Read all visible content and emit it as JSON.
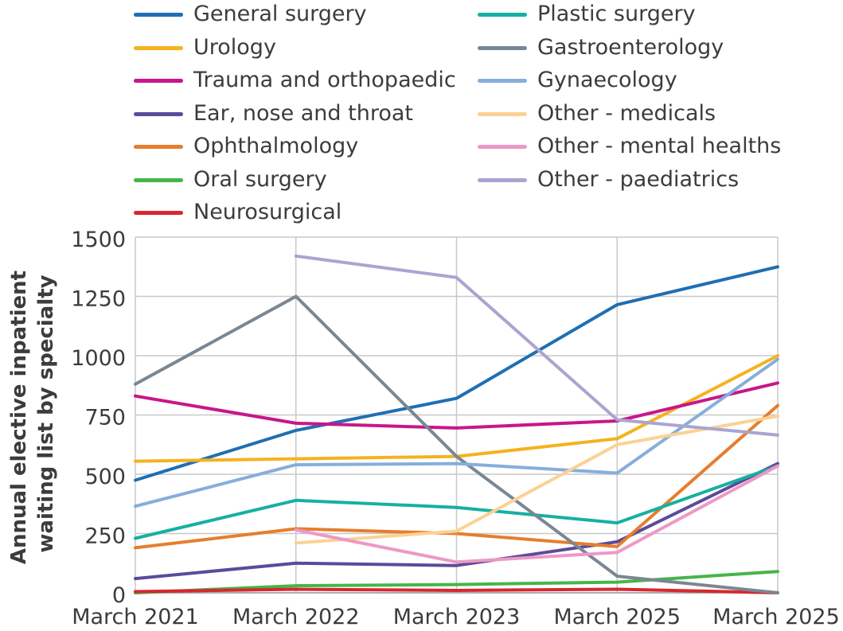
{
  "chart_data": {
    "type": "line",
    "title": "",
    "xlabel": "",
    "ylabel": "Annual elective inpatient waiting list by specialty",
    "ylabel_lines": [
      "Annual elective inpatient",
      "waiting list by specialty"
    ],
    "categories": [
      "March 2021",
      "March 2022",
      "March 2023",
      "March 2025",
      "March 2025"
    ],
    "y_ticks": [
      0,
      250,
      500,
      750,
      1000,
      1250,
      1500
    ],
    "y_tick_labels": [
      "0",
      "250",
      "500",
      "750",
      "1000",
      "1250",
      "1500"
    ],
    "ylim": [
      0,
      1500
    ],
    "grid": true,
    "legend_position": "top",
    "series": [
      {
        "name": "General surgery",
        "color": "#1f6fb2",
        "values": [
          475,
          685,
          820,
          1215,
          1375
        ]
      },
      {
        "name": "Urology",
        "color": "#f5b21f",
        "values": [
          555,
          565,
          575,
          650,
          1000
        ]
      },
      {
        "name": "Trauma and orthopaedic",
        "color": "#c8168a",
        "values": [
          830,
          715,
          695,
          725,
          885
        ]
      },
      {
        "name": "Ear, nose and throat",
        "color": "#5c4a9c",
        "values": [
          60,
          125,
          115,
          215,
          545
        ]
      },
      {
        "name": "Ophthalmology",
        "color": "#e67e2e",
        "values": [
          190,
          270,
          250,
          195,
          790
        ]
      },
      {
        "name": "Oral surgery",
        "color": "#45b649",
        "values": [
          0,
          30,
          35,
          45,
          90
        ]
      },
      {
        "name": "Neurosurgical",
        "color": "#d7282f",
        "values": [
          5,
          15,
          10,
          15,
          0
        ]
      },
      {
        "name": "Plastic surgery",
        "color": "#16b0a2",
        "values": [
          230,
          390,
          360,
          295,
          535
        ]
      },
      {
        "name": "Gastroenterology",
        "color": "#7a8793",
        "values": [
          880,
          1250,
          575,
          70,
          0
        ]
      },
      {
        "name": "Gynaecology",
        "color": "#86aedc",
        "values": [
          365,
          540,
          545,
          505,
          985
        ]
      },
      {
        "name": "Other - medicals",
        "color": "#fbd294",
        "values": [
          null,
          210,
          260,
          625,
          745
        ]
      },
      {
        "name": "Other - mental healths",
        "color": "#ee98c6",
        "values": [
          null,
          265,
          130,
          170,
          535
        ]
      },
      {
        "name": "Other - paediatrics",
        "color": "#aba4d0",
        "values": [
          null,
          1420,
          1330,
          730,
          665
        ]
      }
    ]
  }
}
